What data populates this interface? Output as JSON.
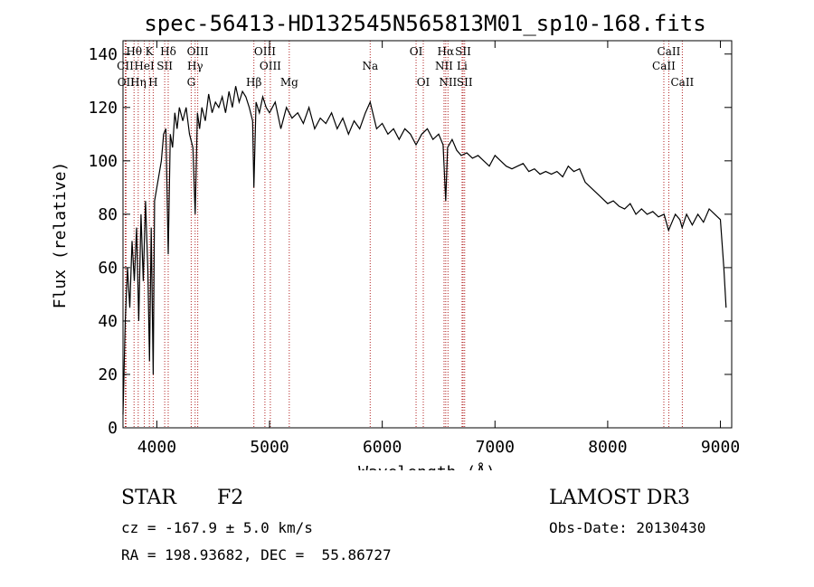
{
  "chart_data": {
    "type": "line",
    "title": "spec-56413-HD132545N565813M01_sp10-168.fits",
    "xlabel": "Wavelength (Å)",
    "ylabel": "Flux (relative)",
    "xlim": [
      3700,
      9100
    ],
    "ylim": [
      0,
      145
    ],
    "xticks": [
      4000,
      5000,
      6000,
      7000,
      8000,
      9000
    ],
    "xtick_labels": [
      "4000",
      "5000",
      "6000",
      "7000",
      "8000",
      "9000"
    ],
    "yticks": [
      0,
      20,
      40,
      60,
      80,
      100,
      120,
      140
    ],
    "ytick_labels": [
      "0",
      "20",
      "40",
      "60",
      "80",
      "100",
      "120",
      "140"
    ],
    "series": [
      {
        "name": "flux",
        "x": [
          3700,
          3720,
          3740,
          3760,
          3780,
          3800,
          3820,
          3840,
          3860,
          3880,
          3900,
          3920,
          3935,
          3950,
          3968,
          3980,
          4000,
          4020,
          4040,
          4060,
          4080,
          4101,
          4120,
          4140,
          4160,
          4180,
          4200,
          4230,
          4260,
          4290,
          4320,
          4340,
          4360,
          4380,
          4400,
          4430,
          4460,
          4490,
          4520,
          4550,
          4580,
          4610,
          4640,
          4670,
          4700,
          4730,
          4760,
          4790,
          4820,
          4850,
          4861,
          4880,
          4910,
          4940,
          4970,
          5000,
          5050,
          5100,
          5150,
          5200,
          5250,
          5300,
          5350,
          5400,
          5450,
          5500,
          5550,
          5600,
          5650,
          5700,
          5750,
          5800,
          5850,
          5893,
          5950,
          6000,
          6050,
          6100,
          6150,
          6200,
          6250,
          6300,
          6350,
          6400,
          6450,
          6500,
          6540,
          6563,
          6580,
          6620,
          6660,
          6700,
          6750,
          6800,
          6850,
          6900,
          6950,
          7000,
          7050,
          7100,
          7150,
          7200,
          7250,
          7300,
          7350,
          7400,
          7450,
          7500,
          7550,
          7600,
          7650,
          7700,
          7750,
          7800,
          7850,
          7900,
          7950,
          8000,
          8050,
          8100,
          8150,
          8200,
          8250,
          8300,
          8350,
          8400,
          8450,
          8500,
          8540,
          8560,
          8600,
          8640,
          8660,
          8700,
          8750,
          8800,
          8850,
          8900,
          8950,
          9000,
          9030,
          9050
        ],
        "y": [
          5,
          40,
          60,
          45,
          70,
          55,
          75,
          40,
          80,
          55,
          85,
          60,
          25,
          75,
          20,
          85,
          90,
          95,
          100,
          110,
          112,
          65,
          110,
          105,
          118,
          112,
          120,
          115,
          120,
          110,
          105,
          80,
          118,
          112,
          120,
          115,
          125,
          118,
          122,
          120,
          124,
          118,
          126,
          120,
          128,
          122,
          126,
          124,
          120,
          115,
          90,
          122,
          118,
          124,
          120,
          118,
          122,
          112,
          120,
          116,
          118,
          114,
          120,
          112,
          116,
          114,
          118,
          112,
          116,
          110,
          115,
          112,
          118,
          122,
          112,
          114,
          110,
          112,
          108,
          112,
          110,
          106,
          110,
          112,
          108,
          110,
          106,
          85,
          105,
          108,
          104,
          102,
          103,
          101,
          102,
          100,
          98,
          102,
          100,
          98,
          97,
          98,
          99,
          96,
          97,
          95,
          96,
          95,
          96,
          94,
          98,
          96,
          97,
          92,
          90,
          88,
          86,
          84,
          85,
          83,
          82,
          84,
          80,
          82,
          80,
          81,
          79,
          80,
          74,
          76,
          80,
          78,
          75,
          80,
          76,
          80,
          77,
          82,
          80,
          78,
          60,
          45
        ]
      }
    ],
    "spectral_lines": [
      {
        "name": "OII",
        "wavelength": 3727,
        "row": 3
      },
      {
        "name": "Hθ",
        "wavelength": 3798,
        "row": 1
      },
      {
        "name": "Hη",
        "wavelength": 3835,
        "row": 3
      },
      {
        "name": "CII",
        "wavelength": 3720,
        "row": 2
      },
      {
        "name": "HeI",
        "wavelength": 3889,
        "row": 2
      },
      {
        "name": "K",
        "wavelength": 3934,
        "row": 1
      },
      {
        "name": "SII",
        "wavelength": 4070,
        "row": 2
      },
      {
        "name": "H",
        "wavelength": 3968,
        "row": 3
      },
      {
        "name": "Hδ",
        "wavelength": 4101,
        "row": 1
      },
      {
        "name": "OIII",
        "wavelength": 4363,
        "row": 1
      },
      {
        "name": "Hγ",
        "wavelength": 4340,
        "row": 2
      },
      {
        "name": "G",
        "wavelength": 4305,
        "row": 3
      },
      {
        "name": "Hβ",
        "wavelength": 4861,
        "row": 3
      },
      {
        "name": "OIII",
        "wavelength": 4959,
        "row": 1
      },
      {
        "name": "OIII",
        "wavelength": 5007,
        "row": 2
      },
      {
        "name": "Mg",
        "wavelength": 5175,
        "row": 3
      },
      {
        "name": "Na",
        "wavelength": 5893,
        "row": 2
      },
      {
        "name": "OI",
        "wavelength": 6300,
        "row": 1
      },
      {
        "name": "OI",
        "wavelength": 6364,
        "row": 3
      },
      {
        "name": "Hα",
        "wavelength": 6563,
        "row": 1
      },
      {
        "name": "NII",
        "wavelength": 6548,
        "row": 2
      },
      {
        "name": "NII",
        "wavelength": 6583,
        "row": 3
      },
      {
        "name": "SII",
        "wavelength": 6717,
        "row": 1
      },
      {
        "name": "Li",
        "wavelength": 6708,
        "row": 2
      },
      {
        "name": "SII",
        "wavelength": 6731,
        "row": 3
      },
      {
        "name": "CaII",
        "wavelength": 8498,
        "row": 2
      },
      {
        "name": "CaII",
        "wavelength": 8542,
        "row": 1
      },
      {
        "name": "CaII",
        "wavelength": 8662,
        "row": 3
      }
    ]
  },
  "info": {
    "object_class": "STAR",
    "subclass": "F2",
    "survey": "LAMOST DR3",
    "redshift": "cz = -167.9 ± 5.0 km/s",
    "obs_date": "Obs-Date: 20130430",
    "coords": "RA = 198.93682, DEC =  55.86727"
  },
  "colors": {
    "line_marker": "#b22222",
    "spectrum": "#000000"
  }
}
